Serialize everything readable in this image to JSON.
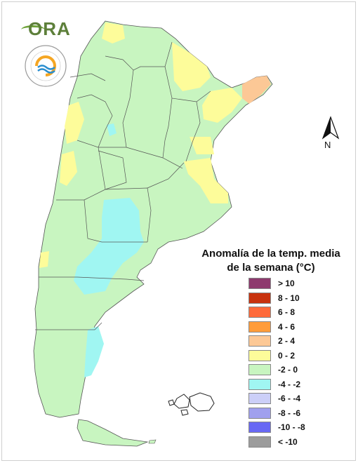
{
  "legend": {
    "title_line1": "Anomalía de la temp. media",
    "title_line2": "de la semana (°C)",
    "items": [
      {
        "label": "> 10",
        "color": "#8e3a6e"
      },
      {
        "label": "8 - 10",
        "color": "#c8320e"
      },
      {
        "label": "6 - 8",
        "color": "#ff6a3a"
      },
      {
        "label": "4 - 6",
        "color": "#ff9c3a"
      },
      {
        "label": "2 - 4",
        "color": "#fcc896"
      },
      {
        "label": "0 - 2",
        "color": "#fdfc9a"
      },
      {
        "label": "-2 - 0",
        "color": "#c8f5c0"
      },
      {
        "label": "-4 - -2",
        "color": "#a0f6f2"
      },
      {
        "label": "-6 - -4",
        "color": "#cccff8"
      },
      {
        "label": "-8 - -6",
        "color": "#a0a0ee"
      },
      {
        "label": "-10 - -8",
        "color": "#6868f4"
      },
      {
        "label": "< -10",
        "color": "#9c9c9c"
      }
    ]
  },
  "logos": {
    "ora_text": "ORA",
    "north_label": "N"
  },
  "icons": {
    "ora_logo": "ora-logo-icon",
    "smn_logo": "smn-seal-icon",
    "north_arrow": "north-arrow-icon"
  }
}
